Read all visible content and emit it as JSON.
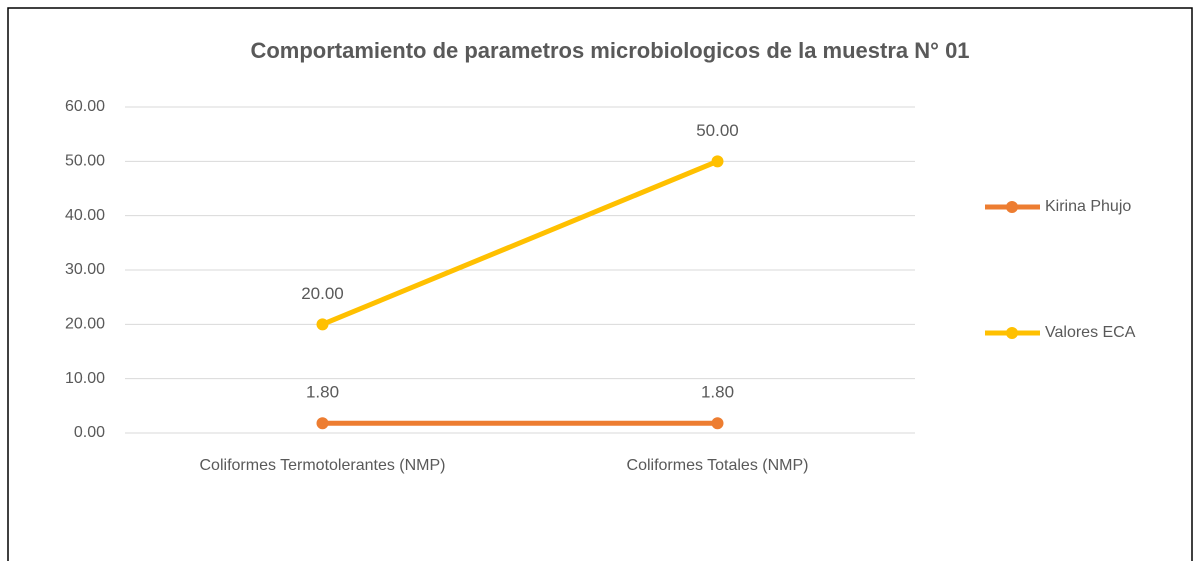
{
  "chart_data": {
    "type": "line",
    "title": "Comportamiento de parametros microbiologicos  de la muestra N° 01",
    "categories": [
      "Coliformes Termotolerantes (NMP)",
      "Coliformes Totales (NMP)"
    ],
    "series": [
      {
        "name": "Kirina Phujo",
        "color": "#ED7D31",
        "values": [
          1.8,
          1.8
        ],
        "value_labels": [
          "1.80",
          "1.80"
        ]
      },
      {
        "name": "Valores ECA",
        "color": "#FFC000",
        "values": [
          20,
          50
        ],
        "value_labels": [
          "20.00",
          "50.00"
        ]
      }
    ],
    "ylim": [
      0,
      60
    ],
    "yticks": [
      {
        "value": 0,
        "label": "0.00"
      },
      {
        "value": 10,
        "label": "10.00"
      },
      {
        "value": 20,
        "label": "20.00"
      },
      {
        "value": 30,
        "label": "30.00"
      },
      {
        "value": 40,
        "label": "40.00"
      },
      {
        "value": 50,
        "label": "50.00"
      },
      {
        "value": 60,
        "label": "60.00"
      }
    ],
    "grid": true,
    "legend": "right"
  }
}
